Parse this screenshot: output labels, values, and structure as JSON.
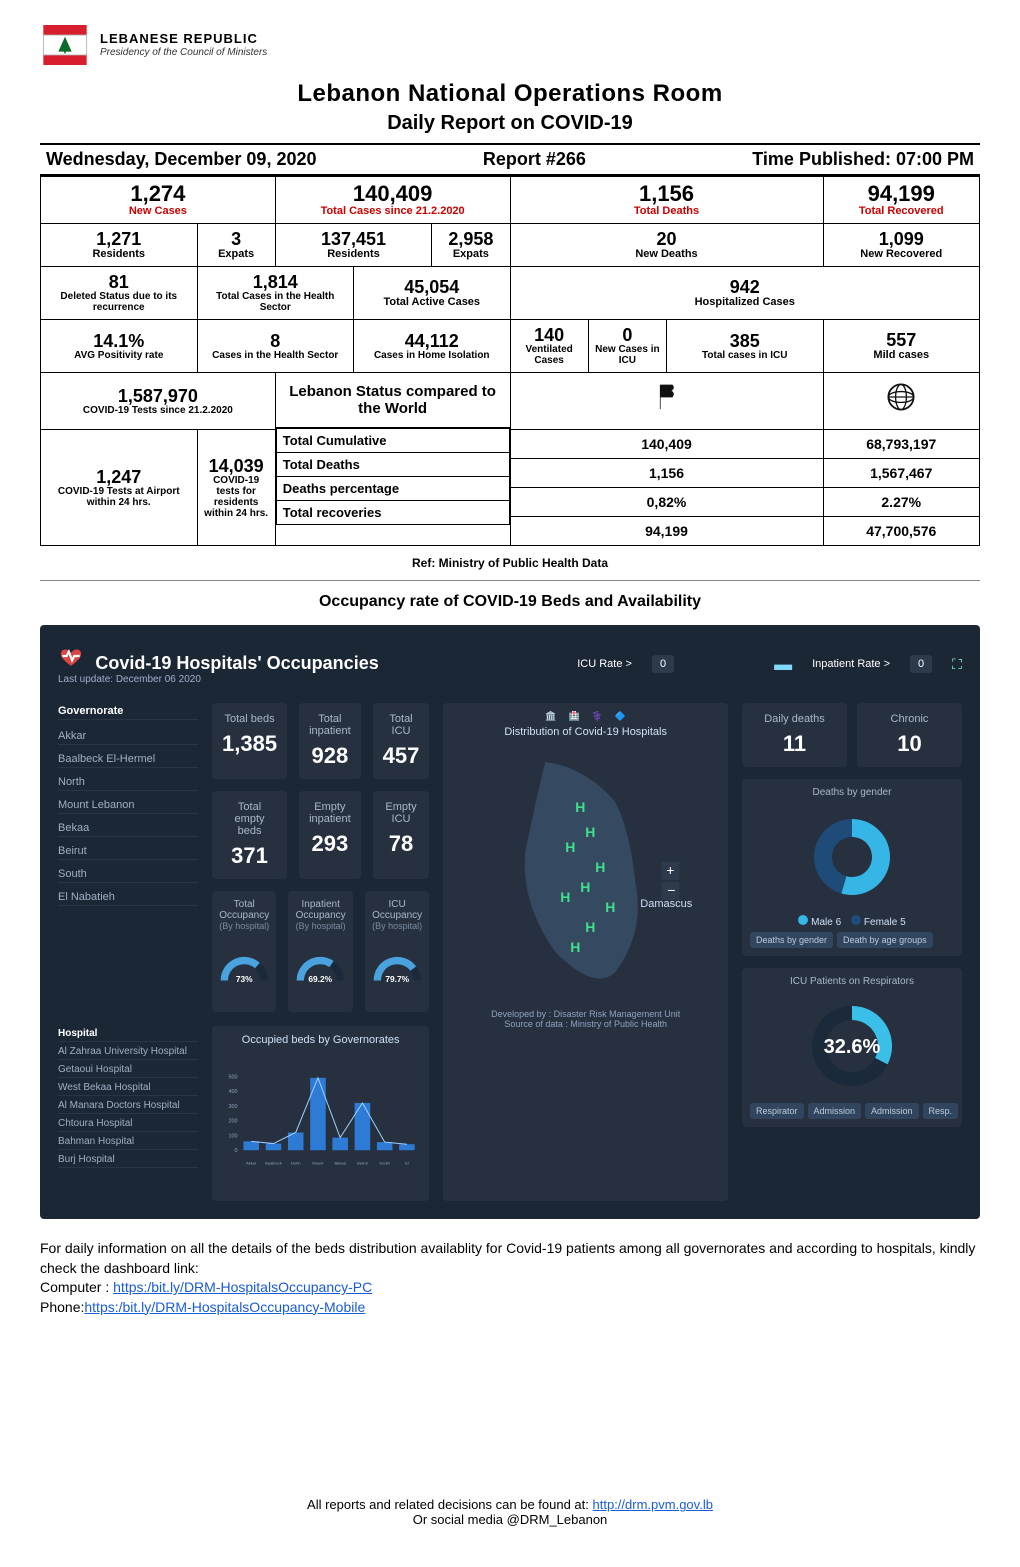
{
  "header": {
    "org_line1": "LEBANESE REPUBLIC",
    "org_line2": "Presidency of the Council of Ministers",
    "logo_colors": {
      "tree": "#0b6b2e",
      "flag_red": "#d81e2c"
    }
  },
  "titles": {
    "main": "Lebanon National Operations Room",
    "sub": "Daily Report on COVID-19"
  },
  "meta": {
    "date": "Wednesday, December 09, 2020",
    "report_no": "Report #266",
    "time_published": "Time Published: 07:00 PM"
  },
  "stats": {
    "new_cases": {
      "value": "1,274",
      "label": "New Cases"
    },
    "total_cases": {
      "value": "140,409",
      "label": "Total Cases since 21.2.2020"
    },
    "total_deaths": {
      "value": "1,156",
      "label": "Total Deaths"
    },
    "total_recovered": {
      "value": "94,199",
      "label": "Total Recovered"
    },
    "residents_new": {
      "value": "1,271",
      "label": "Residents"
    },
    "expats_new": {
      "value": "3",
      "label": "Expats"
    },
    "residents_total": {
      "value": "137,451",
      "label": "Residents"
    },
    "expats_total": {
      "value": "2,958",
      "label": "Expats"
    },
    "new_deaths": {
      "value": "20",
      "label": "New Deaths"
    },
    "new_recovered": {
      "value": "1,099",
      "label": "New Recovered"
    },
    "deleted_status": {
      "value": "81",
      "label": "Deleted Status due to its recurrence"
    },
    "cases_health_sector": {
      "value": "1,814",
      "label": "Total Cases in the Health Sector"
    },
    "total_active": {
      "value": "45,054",
      "label": "Total Active Cases"
    },
    "hospitalized": {
      "value": "942",
      "label": "Hospitalized Cases"
    },
    "positivity": {
      "value": "14.1%",
      "label": "AVG Positivity rate"
    },
    "cases_in_hs": {
      "value": "8",
      "label": "Cases in the Health Sector"
    },
    "home_isolation": {
      "value": "44,112",
      "label": "Cases in Home Isolation"
    },
    "ventilated": {
      "value": "140",
      "label": "Ventilated Cases"
    },
    "new_icu": {
      "value": "0",
      "label": "New Cases in ICU"
    },
    "total_icu": {
      "value": "385",
      "label": "Total cases in ICU"
    },
    "mild": {
      "value": "557",
      "label": "Mild cases"
    },
    "total_tests": {
      "value": "1,587,970",
      "label": "COVID-19 Tests since 21.2.2020"
    },
    "airport_tests": {
      "value": "1,247",
      "label": "COVID-19 Tests at Airport within 24 hrs."
    },
    "resident_tests": {
      "value": "14,039",
      "label": "COVID-19 tests for residents within 24 hrs."
    }
  },
  "world_compare": {
    "title": "Lebanon Status compared to the World",
    "rows": [
      {
        "label": "Total Cumulative",
        "lebanon": "140,409",
        "world": "68,793,197"
      },
      {
        "label": "Total Deaths",
        "lebanon": "1,156",
        "world": "1,567,467"
      },
      {
        "label": "Deaths percentage",
        "lebanon": "0,82%",
        "world": "2.27%"
      },
      {
        "label": "Total recoveries",
        "lebanon": "94,199",
        "world": "47,700,576"
      }
    ],
    "lebanon_icon_label": "Lebanon",
    "world_icon_label": "World"
  },
  "ref_line": "Ref: Ministry of Public Health Data",
  "section_occupancy_title": "Occupancy rate of COVID-19 Beds and Availability",
  "dashboard": {
    "title": "Covid-19 Hospitals' Occupancies",
    "last_update": "Last update: December 06 2020",
    "filter_icu": {
      "label": "ICU Rate >",
      "value": "0"
    },
    "filter_inpatient": {
      "label": "Inpatient Rate >",
      "value": "0"
    },
    "governorates_header": "Governorate",
    "governorates": [
      "Akkar",
      "Baalbeck El-Hermel",
      "North",
      "Mount Lebanon",
      "Bekaa",
      "Beirut",
      "South",
      "El Nabatieh"
    ],
    "cards": {
      "total_beds": {
        "title": "Total beds",
        "value": "1,385"
      },
      "total_inpatient": {
        "title": "Total inpatient",
        "value": "928"
      },
      "total_icu": {
        "title": "Total ICU",
        "value": "457"
      },
      "total_empty_beds": {
        "title": "Total empty beds",
        "value": "371"
      },
      "empty_inpatient": {
        "title": "Empty inpatient",
        "value": "293"
      },
      "empty_icu": {
        "title": "Empty ICU",
        "value": "78"
      }
    },
    "gauges": {
      "total_occupancy": {
        "title": "Total Occupancy",
        "sub": "(By hospital)",
        "value": 73,
        "text": "73%",
        "color": "#4aa3df"
      },
      "inpatient_occupancy": {
        "title": "Inpatient Occupancy",
        "sub": "(By hospital)",
        "value": 69.2,
        "text": "69.2%",
        "color": "#4aa3df"
      },
      "icu_occupancy": {
        "title": "ICU Occupancy",
        "sub": "(By hospital)",
        "value": 79.7,
        "text": "79.7%",
        "color": "#4aa3df"
      }
    },
    "map": {
      "title": "Distribution of Covid-19 Hospitals",
      "developed_by": "Developed by : Disaster Risk Management Unit",
      "source": "Source of data : Ministry of Public Health",
      "label_damascus": "Damascus"
    },
    "right": {
      "daily_deaths": {
        "title": "Daily deaths",
        "value": "11"
      },
      "chronic": {
        "title": "Chronic",
        "value": "10"
      },
      "deaths_by_gender": {
        "title": "Deaths by gender",
        "male": {
          "label": "Male",
          "value": 6,
          "color": "#36b6e6"
        },
        "female": {
          "label": "Female",
          "value": 5,
          "color": "#1f4b78"
        },
        "tabs": [
          "Deaths by gender",
          "Death by age groups"
        ]
      },
      "icu_respirators": {
        "title": "ICU Patients on Respirators",
        "value": 32.6,
        "text": "32.6%",
        "color_primary": "#3ac0e8",
        "color_remainder": "#1a2a3a",
        "tabs": [
          "Respirator",
          "Admission",
          "Admission",
          "Resp."
        ]
      }
    },
    "hospitals_header": "Hospital",
    "hospitals": [
      "Al Zahraa University Hospital",
      "Getaoui Hospital",
      "West Bekaa Hospital",
      "Al Manara Doctors Hospital",
      "Chtoura Hospital",
      "Bahman Hospital",
      "Burj Hospital"
    ],
    "bar_chart": {
      "title": "Occupied beds by Governorates",
      "categories": [
        "Akkar",
        "Baalbeck El-Hermel",
        "North",
        "Mount Lebanon",
        "Bekaa",
        "Beirut",
        "South",
        "El Nabatieh"
      ],
      "values": [
        60,
        45,
        120,
        490,
        85,
        320,
        55,
        40
      ],
      "ylim": [
        0,
        500
      ],
      "ytick_step": 100,
      "bar_color": "#2e7bd6",
      "line_color": "#9fd2ff"
    },
    "colors": {
      "bg": "#1b2735",
      "card_bg": "#26303f",
      "text_muted": "#9fb0c4",
      "text_light": "#cfe0f5"
    }
  },
  "below_dash": {
    "para": "For daily information on all the details of the beds distribution availablity for Covid-19 patients among all governorates and according to hospitals, kindly check the dashboard link:",
    "computer_label": "Computer : ",
    "computer_link": "https:/bit.ly/DRM-HospitalsOccupancy-PC",
    "phone_label": "Phone:",
    "phone_link": "https:/bit.ly/DRM-HospitalsOccupancy-Mobile"
  },
  "footer": {
    "line1_prefix": "All reports and related decisions can be found at: ",
    "link": "http://drm.pvm.gov.lb",
    "line2": "Or social media @DRM_Lebanon"
  }
}
